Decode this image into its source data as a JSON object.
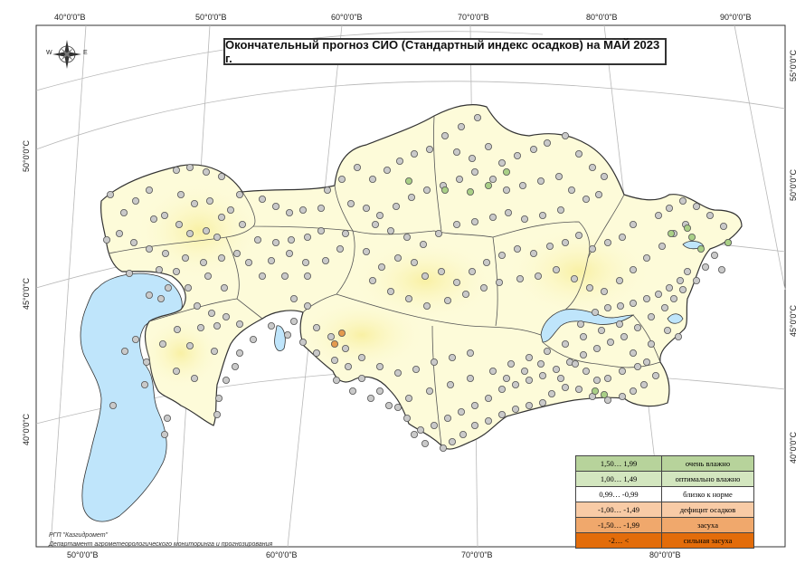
{
  "title": "Окончательный прогноз СИО (Стандартный индекс осадков) на МАЙ 2023 г.",
  "top_lon_labels": [
    "40°0'0\"В",
    "50°0'0\"В",
    "60°0'0\"В",
    "70°0'0\"В",
    "80°0'0\"В",
    "90°0'0\"В"
  ],
  "bottom_lon_labels": [
    "50°0'0\"В",
    "60°0'0\"В",
    "70°0'0\"В",
    "80°0'0\"В"
  ],
  "left_lat_labels": [
    "50°0'0\"С",
    "45°0'0\"С",
    "40°0'0\"С"
  ],
  "right_lat_labels": [
    "55°0'0\"С",
    "50°0'0\"С",
    "45°0'0\"С",
    "40°0'0\"С"
  ],
  "compass": {
    "west": "W",
    "east": "E",
    "icon": "compass-rose-icon"
  },
  "legend": [
    {
      "range": "1,50… 1,99",
      "label": "очень влажно",
      "color": "#b7d39b"
    },
    {
      "range": "1,00… 1,49",
      "label": "оптимально влажно",
      "color": "#d3e6bf"
    },
    {
      "range": "0,99… -0,99",
      "label": "близко к норме",
      "color": "#ffffff"
    },
    {
      "range": "-1,00… -1,49",
      "label": "дефицит осадков",
      "color": "#f8cba6"
    },
    {
      "range": "-1,50… -1,99",
      "label": "засуха",
      "color": "#f0a86c"
    },
    {
      "range": "-2… <",
      "label": "сильная засуха",
      "color": "#e36c0a"
    }
  ],
  "credits": {
    "line1": "РГП \"Казгидромет\"",
    "line2": "Департамент агрометеорологического мониторинга и прогнозирования"
  },
  "colors": {
    "water": "#bfe5fb",
    "land": "#fdfbd9",
    "land_warm": "#fbf5b8",
    "station_normal": "#c9c9c9",
    "station_wet": "#a9cf86",
    "station_dry": "#e39a4e"
  }
}
